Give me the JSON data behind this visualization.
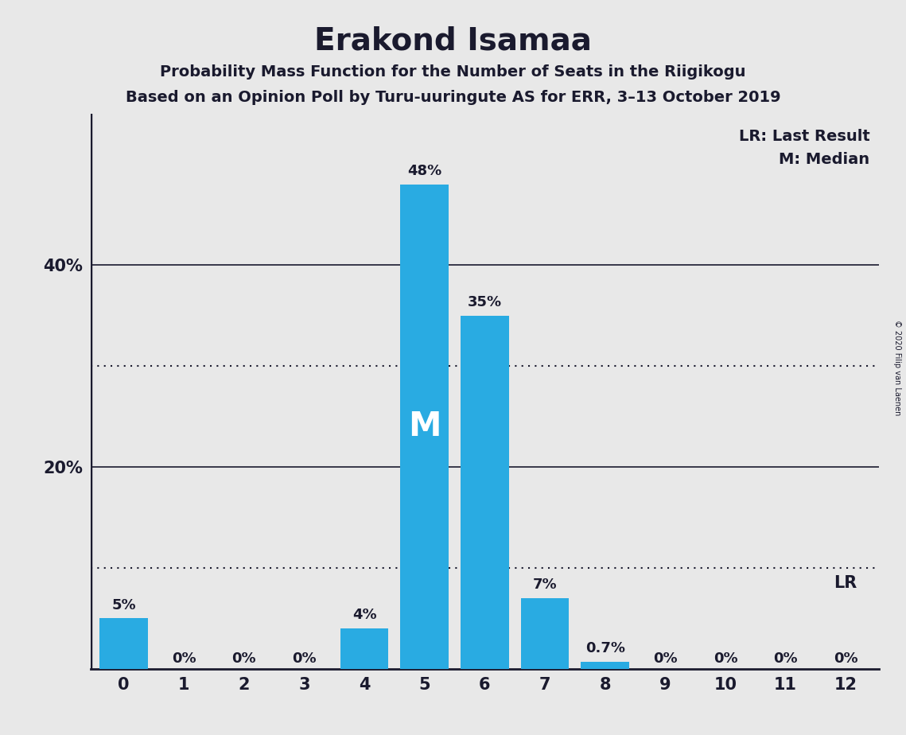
{
  "title": "Erakond Isamaa",
  "subtitle1": "Probability Mass Function for the Number of Seats in the Riigikogu",
  "subtitle2": "Based on an Opinion Poll by Turu-uuringute AS for ERR, 3–13 October 2019",
  "copyright": "© 2020 Filip van Laenen",
  "categories": [
    0,
    1,
    2,
    3,
    4,
    5,
    6,
    7,
    8,
    9,
    10,
    11,
    12
  ],
  "values": [
    5,
    0,
    0,
    0,
    4,
    48,
    35,
    7,
    0.7,
    0,
    0,
    0,
    0
  ],
  "labels": [
    "5%",
    "0%",
    "0%",
    "0%",
    "4%",
    "48%",
    "35%",
    "7%",
    "0.7%",
    "0%",
    "0%",
    "0%",
    "0%"
  ],
  "bar_color": "#29ABE2",
  "background_color": "#E8E8E8",
  "median_bar": 5,
  "solid_lines": [
    20,
    40
  ],
  "dotted_lines": [
    10,
    30
  ],
  "ylim": [
    0,
    55
  ],
  "legend_lr": "LR: Last Result",
  "legend_m": "M: Median",
  "lr_note": "LR",
  "text_color": "#1a1a2e",
  "axis_color": "#1a1a2e"
}
